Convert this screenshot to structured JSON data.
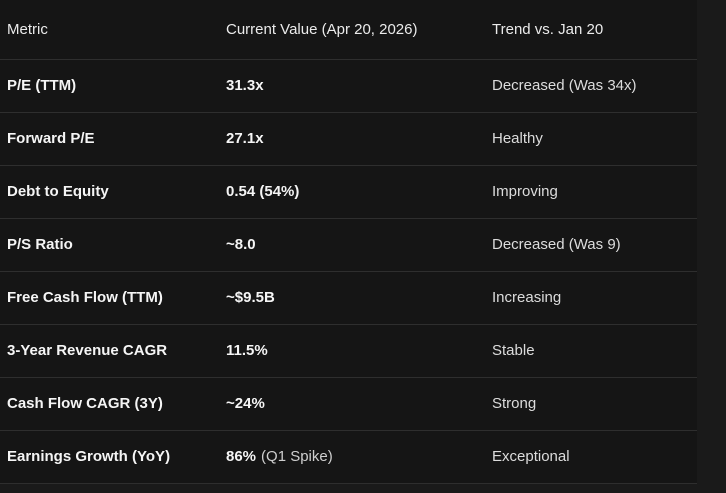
{
  "chart_data": {
    "type": "table",
    "columns": [
      "Metric",
      "Current Value (Apr 20, 2026)",
      "Trend vs. Jan 20"
    ],
    "rows": [
      {
        "metric": "P/E (TTM)",
        "value": "31.3x",
        "value_note": "",
        "trend": "Decreased (Was 34x)"
      },
      {
        "metric": "Forward P/E",
        "value": "27.1x",
        "value_note": "",
        "trend": "Healthy"
      },
      {
        "metric": "Debt to Equity",
        "value": "0.54 (54%)",
        "value_note": "",
        "trend": "Improving"
      },
      {
        "metric": "P/S Ratio",
        "value": "~8.0",
        "value_note": "",
        "trend": "Decreased (Was 9)"
      },
      {
        "metric": "Free Cash Flow (TTM)",
        "value": "~$9.5B",
        "value_note": "",
        "trend": "Increasing"
      },
      {
        "metric": "3-Year Revenue CAGR",
        "value": "11.5%",
        "value_note": "",
        "trend": "Stable"
      },
      {
        "metric": "Cash Flow CAGR (3Y)",
        "value": "~24%",
        "value_note": "",
        "trend": "Strong"
      },
      {
        "metric": "Earnings Growth (YoY)",
        "value": "86%",
        "value_note": "(Q1 Spike)",
        "trend": "Exceptional"
      }
    ]
  },
  "colors": {
    "page_bg": "#1a1a1a",
    "table_bg": "#151515",
    "divider": "#2e2e2e",
    "header_text": "#ebebeb",
    "metric_text": "#f5f5f5",
    "value_text": "#f5f5f5",
    "value_note_text": "#cfcfcf",
    "trend_text": "#dcdcdc"
  }
}
